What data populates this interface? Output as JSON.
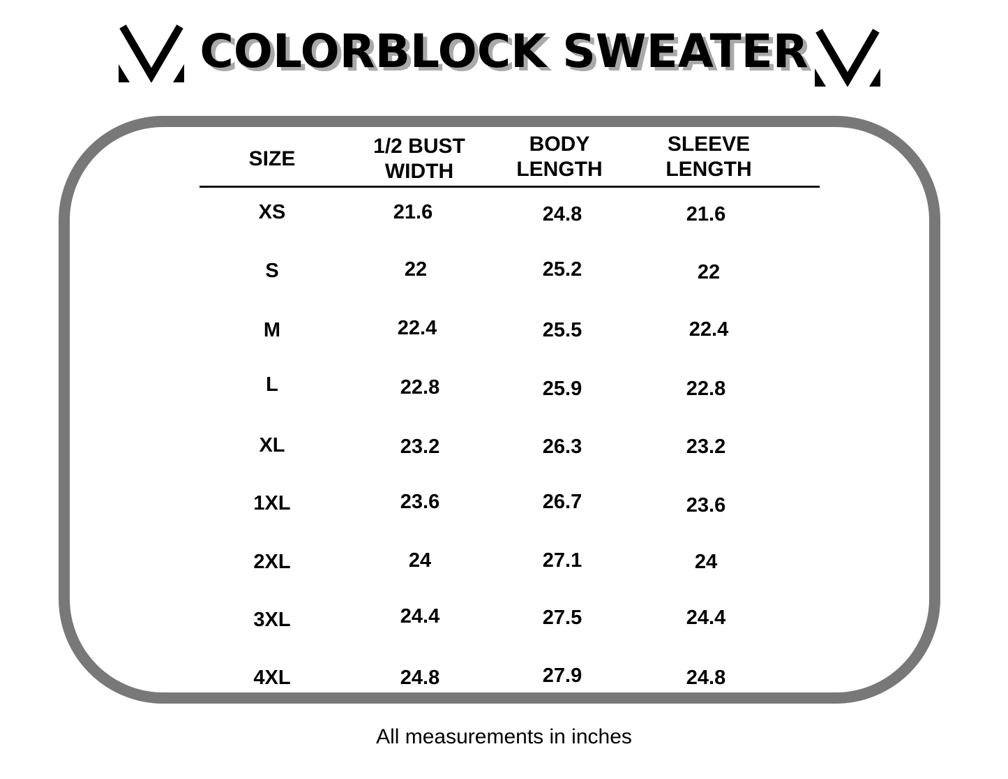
{
  "title": "COLORBLOCK SWEATER",
  "headers": [
    {
      "line1": "SIZE",
      "line2": ""
    },
    {
      "line1": "1/2 BUST",
      "line2": "WIDTH"
    },
    {
      "line1": "BODY",
      "line2": "LENGTH"
    },
    {
      "line1": "SLEEVE",
      "line2": "LENGTH"
    }
  ],
  "rows": [
    {
      "size": "XS",
      "bust": "21.6",
      "body": "24.8",
      "sleeve": "21.6"
    },
    {
      "size": "S",
      "bust": "22",
      "body": "25.2",
      "sleeve": "22"
    },
    {
      "size": "M",
      "bust": "22.4",
      "body": "25.5",
      "sleeve": "22.4"
    },
    {
      "size": "L",
      "bust": "22.8",
      "body": "25.9",
      "sleeve": "22.8"
    },
    {
      "size": "XL",
      "bust": "23.2",
      "body": "26.3",
      "sleeve": "23.2"
    },
    {
      "size": "1XL",
      "bust": "23.6",
      "body": "26.7",
      "sleeve": "23.6"
    },
    {
      "size": "2XL",
      "bust": "24",
      "body": "27.1",
      "sleeve": "24"
    },
    {
      "size": "3XL",
      "bust": "24.4",
      "body": "27.5",
      "sleeve": "24.4"
    },
    {
      "size": "4XL",
      "bust": "24.8",
      "body": "27.9",
      "sleeve": "24.8"
    }
  ],
  "footnote": "All measurements in inches",
  "colors": {
    "text": "#000000",
    "frame": "#787878",
    "title_shadow": "#a9a9a9"
  },
  "icons": [
    "logo-left-icon",
    "logo-right-icon"
  ]
}
